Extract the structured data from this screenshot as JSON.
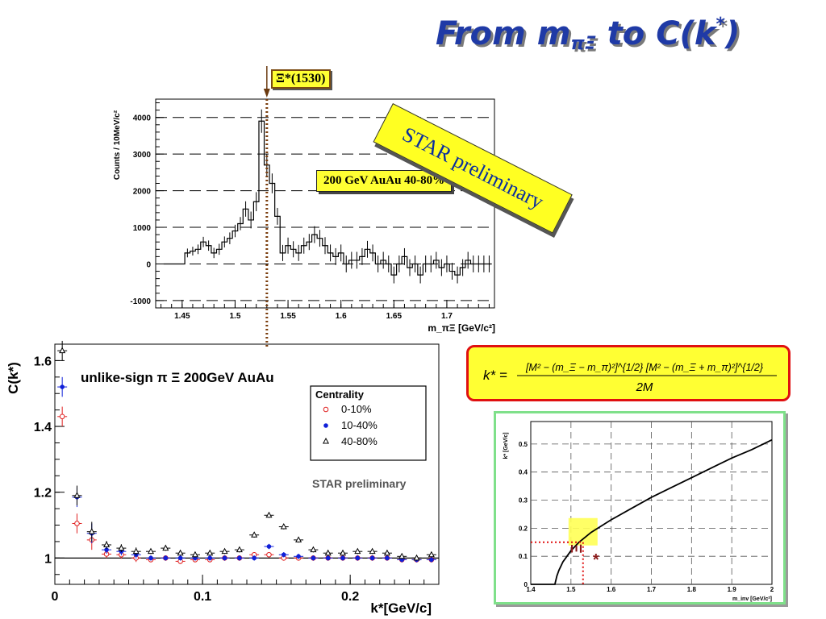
{
  "slide": {
    "title_main": "From m",
    "title_sub": "πΞ",
    "title_mid": " to ",
    "title_func": "C(k",
    "title_sup": "*",
    "title_end": ")"
  },
  "annotations": {
    "xi_peak_label": "Ξ*(1530)",
    "energy_label": "200 GeV AuAu 40-80%",
    "star_banner": "STAR preliminary"
  },
  "formula": {
    "lhs": "k* =",
    "numerator": "[M² − (m_Ξ − m_π)²]^{1/2} [M² − (m_Ξ + m_π)²]^{1/2}",
    "denominator": "2M"
  },
  "chart_data": [
    {
      "type": "bar",
      "style": "step-histogram",
      "xlabel": "m_πΞ [GeV/c²]",
      "ylabel": "Counts / 10MeV/c²",
      "xlim": [
        1.425,
        1.745
      ],
      "ylim": [
        -1200,
        4500
      ],
      "xticks": [
        "1.45",
        "1.5",
        "1.55",
        "1.6",
        "1.65",
        "1.7"
      ],
      "yticks": [
        "-1000",
        "0",
        "1000",
        "2000",
        "3000",
        "4000"
      ],
      "grid": "horizontal-dashed",
      "x": [
        1.435,
        1.44,
        1.445,
        1.45,
        1.455,
        1.46,
        1.465,
        1.47,
        1.475,
        1.48,
        1.485,
        1.49,
        1.495,
        1.5,
        1.505,
        1.51,
        1.515,
        1.52,
        1.525,
        1.53,
        1.535,
        1.54,
        1.545,
        1.55,
        1.555,
        1.56,
        1.565,
        1.57,
        1.575,
        1.58,
        1.585,
        1.59,
        1.595,
        1.6,
        1.605,
        1.61,
        1.615,
        1.62,
        1.625,
        1.63,
        1.635,
        1.64,
        1.645,
        1.65,
        1.655,
        1.66,
        1.665,
        1.67,
        1.675,
        1.68,
        1.685,
        1.69,
        1.695,
        1.7,
        1.705,
        1.71,
        1.715,
        1.72,
        1.725,
        1.73,
        1.735,
        1.74
      ],
      "values": [
        0,
        0,
        0,
        0,
        300,
        350,
        400,
        600,
        500,
        300,
        400,
        600,
        700,
        900,
        1100,
        1500,
        1200,
        1700,
        3900,
        2700,
        2200,
        1300,
        300,
        500,
        400,
        300,
        500,
        600,
        800,
        700,
        500,
        300,
        200,
        300,
        0,
        100,
        100,
        200,
        400,
        300,
        0,
        100,
        0,
        -300,
        0,
        200,
        -100,
        0,
        -300,
        0,
        0,
        100,
        -100,
        0,
        -200,
        -300,
        -100,
        100,
        0,
        0,
        0,
        0
      ],
      "errors": [
        0,
        0,
        0,
        0,
        120,
        120,
        130,
        140,
        140,
        140,
        150,
        150,
        160,
        170,
        180,
        210,
        230,
        260,
        320,
        300,
        270,
        230,
        220,
        220,
        220,
        220,
        220,
        220,
        230,
        230,
        230,
        230,
        230,
        230,
        230,
        230,
        230,
        230,
        230,
        230,
        230,
        230,
        230,
        230,
        230,
        230,
        230,
        230,
        230,
        230,
        230,
        230,
        230,
        230,
        230,
        230,
        230,
        230,
        230,
        230,
        230,
        230
      ],
      "marker_x": 1.53
    },
    {
      "type": "scatter",
      "title": "unlike-sign π Ξ  200GeV AuAu",
      "xlabel": "k*[GeV/c]",
      "ylabel": "C(k*)",
      "xlim": [
        0,
        0.26
      ],
      "ylim": [
        0.92,
        1.65
      ],
      "xticks": [
        "0",
        "0.1",
        "0.2"
      ],
      "yticks": [
        "1",
        "1.2",
        "1.4",
        "1.6"
      ],
      "reference_line_y": 1,
      "legend_title": "Centrality",
      "legend_position": "top-right",
      "watermark": "STAR preliminary",
      "series": [
        {
          "name": "0-10%",
          "marker": "open-circle",
          "color": "#e02020",
          "x": [
            0.005,
            0.015,
            0.025,
            0.035,
            0.045,
            0.055,
            0.065,
            0.075,
            0.085,
            0.095,
            0.105,
            0.115,
            0.125,
            0.135,
            0.145,
            0.155,
            0.165,
            0.175,
            0.185,
            0.195,
            0.205,
            0.215,
            0.225,
            0.235,
            0.245,
            0.255
          ],
          "y": [
            1.43,
            1.105,
            1.055,
            1.012,
            1.01,
            1.0,
            0.995,
            1.0,
            0.99,
            0.995,
            0.995,
            1.0,
            1.0,
            1.01,
            1.01,
            1.0,
            1.0,
            1.0,
            1.0,
            1.0,
            1.0,
            1.0,
            1.0,
            0.995,
            0.995,
            0.995
          ]
        },
        {
          "name": "10-40%",
          "marker": "filled-circle",
          "color": "#1020d8",
          "x": [
            0.005,
            0.015,
            0.025,
            0.035,
            0.045,
            0.055,
            0.065,
            0.075,
            0.085,
            0.095,
            0.105,
            0.115,
            0.125,
            0.135,
            0.145,
            0.155,
            0.165,
            0.175,
            0.185,
            0.195,
            0.205,
            0.215,
            0.225,
            0.235,
            0.245,
            0.255
          ],
          "y": [
            1.52,
            1.185,
            1.075,
            1.025,
            1.02,
            1.01,
            1.0,
            1.0,
            1.0,
            1.0,
            1.0,
            1.0,
            1.0,
            1.0,
            1.035,
            1.01,
            1.005,
            1.0,
            1.0,
            1.0,
            1.0,
            1.0,
            1.0,
            0.995,
            0.995,
            0.995
          ]
        },
        {
          "name": "40-80%",
          "marker": "open-triangle",
          "color": "#000000",
          "x": [
            0.005,
            0.015,
            0.025,
            0.035,
            0.045,
            0.055,
            0.065,
            0.075,
            0.085,
            0.095,
            0.105,
            0.115,
            0.125,
            0.135,
            0.145,
            0.155,
            0.165,
            0.175,
            0.185,
            0.195,
            0.205,
            0.215,
            0.225,
            0.235,
            0.245,
            0.255
          ],
          "y": [
            1.63,
            1.19,
            1.08,
            1.04,
            1.03,
            1.02,
            1.02,
            1.03,
            1.015,
            1.01,
            1.015,
            1.02,
            1.025,
            1.07,
            1.13,
            1.095,
            1.055,
            1.025,
            1.015,
            1.015,
            1.02,
            1.02,
            1.015,
            1.005,
            1.0,
            1.01
          ]
        }
      ]
    },
    {
      "type": "line",
      "xlabel": "m_inv [GeV/c²]",
      "ylabel": "k* [GeV/c]",
      "xlim": [
        1.4,
        2.0
      ],
      "ylim": [
        0,
        0.58
      ],
      "xticks": [
        "1.4",
        "1.5",
        "1.6",
        "1.7",
        "1.8",
        "1.9",
        "2"
      ],
      "yticks": [
        "0",
        "0.1",
        "0.2",
        "0.3",
        "0.4",
        "0.5"
      ],
      "grid": "dashed",
      "x": [
        1.46,
        1.465,
        1.47,
        1.48,
        1.49,
        1.5,
        1.52,
        1.55,
        1.6,
        1.65,
        1.7,
        1.75,
        1.8,
        1.85,
        1.9,
        1.95,
        2.0
      ],
      "y": [
        0.0,
        0.03,
        0.05,
        0.08,
        0.1,
        0.12,
        0.15,
        0.185,
        0.23,
        0.27,
        0.31,
        0.345,
        0.38,
        0.415,
        0.45,
        0.48,
        0.515
      ],
      "highlight_point": {
        "x": 1.53,
        "y": 0.15
      },
      "marker_glyph": "Ξ",
      "marker_star": "*"
    }
  ]
}
